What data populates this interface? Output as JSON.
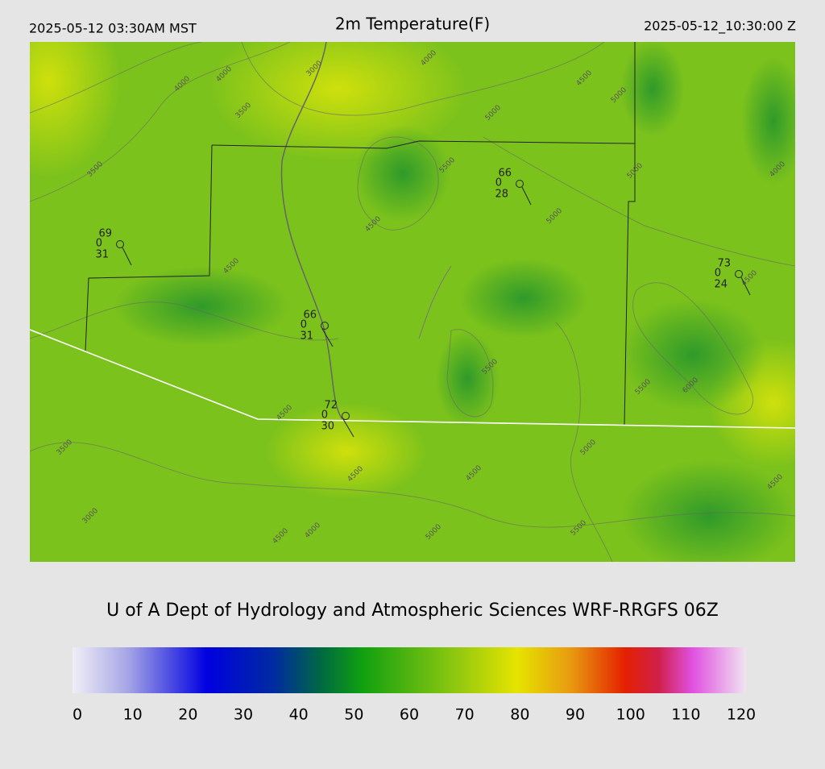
{
  "header": {
    "left": "2025-05-12 03:30AM MST",
    "title": "2m Temperature(F)",
    "right": "2025-05-12_10:30:00 Z"
  },
  "contours": [
    "4000",
    "4000",
    "3000",
    "4000",
    "4500",
    "5000",
    "3500",
    "5000",
    "3500",
    "5500",
    "5000",
    "4000",
    "4500",
    "5000",
    "4500",
    "4500",
    "5500",
    "5500",
    "6000",
    "4500",
    "3500",
    "5000",
    "4500",
    "4500",
    "3000",
    "4000",
    "4500",
    "5000",
    "5500",
    "4500"
  ],
  "stations": [
    {
      "temp": 69,
      "pressure": 0,
      "dewpoint": 31
    },
    {
      "temp": 66,
      "pressure": 0,
      "dewpoint": 28
    },
    {
      "temp": 73,
      "pressure": 0,
      "dewpoint": 24
    },
    {
      "temp": 66,
      "pressure": 0,
      "dewpoint": 31
    },
    {
      "temp": 72,
      "pressure": 0,
      "dewpoint": 30
    }
  ],
  "footer": "U of A Dept of Hydrology and Atmospheric Sciences WRF-RRGFS 06Z",
  "colorbar": {
    "ticks": [
      0,
      10,
      20,
      30,
      40,
      50,
      60,
      70,
      80,
      90,
      100,
      110,
      120
    ]
  }
}
